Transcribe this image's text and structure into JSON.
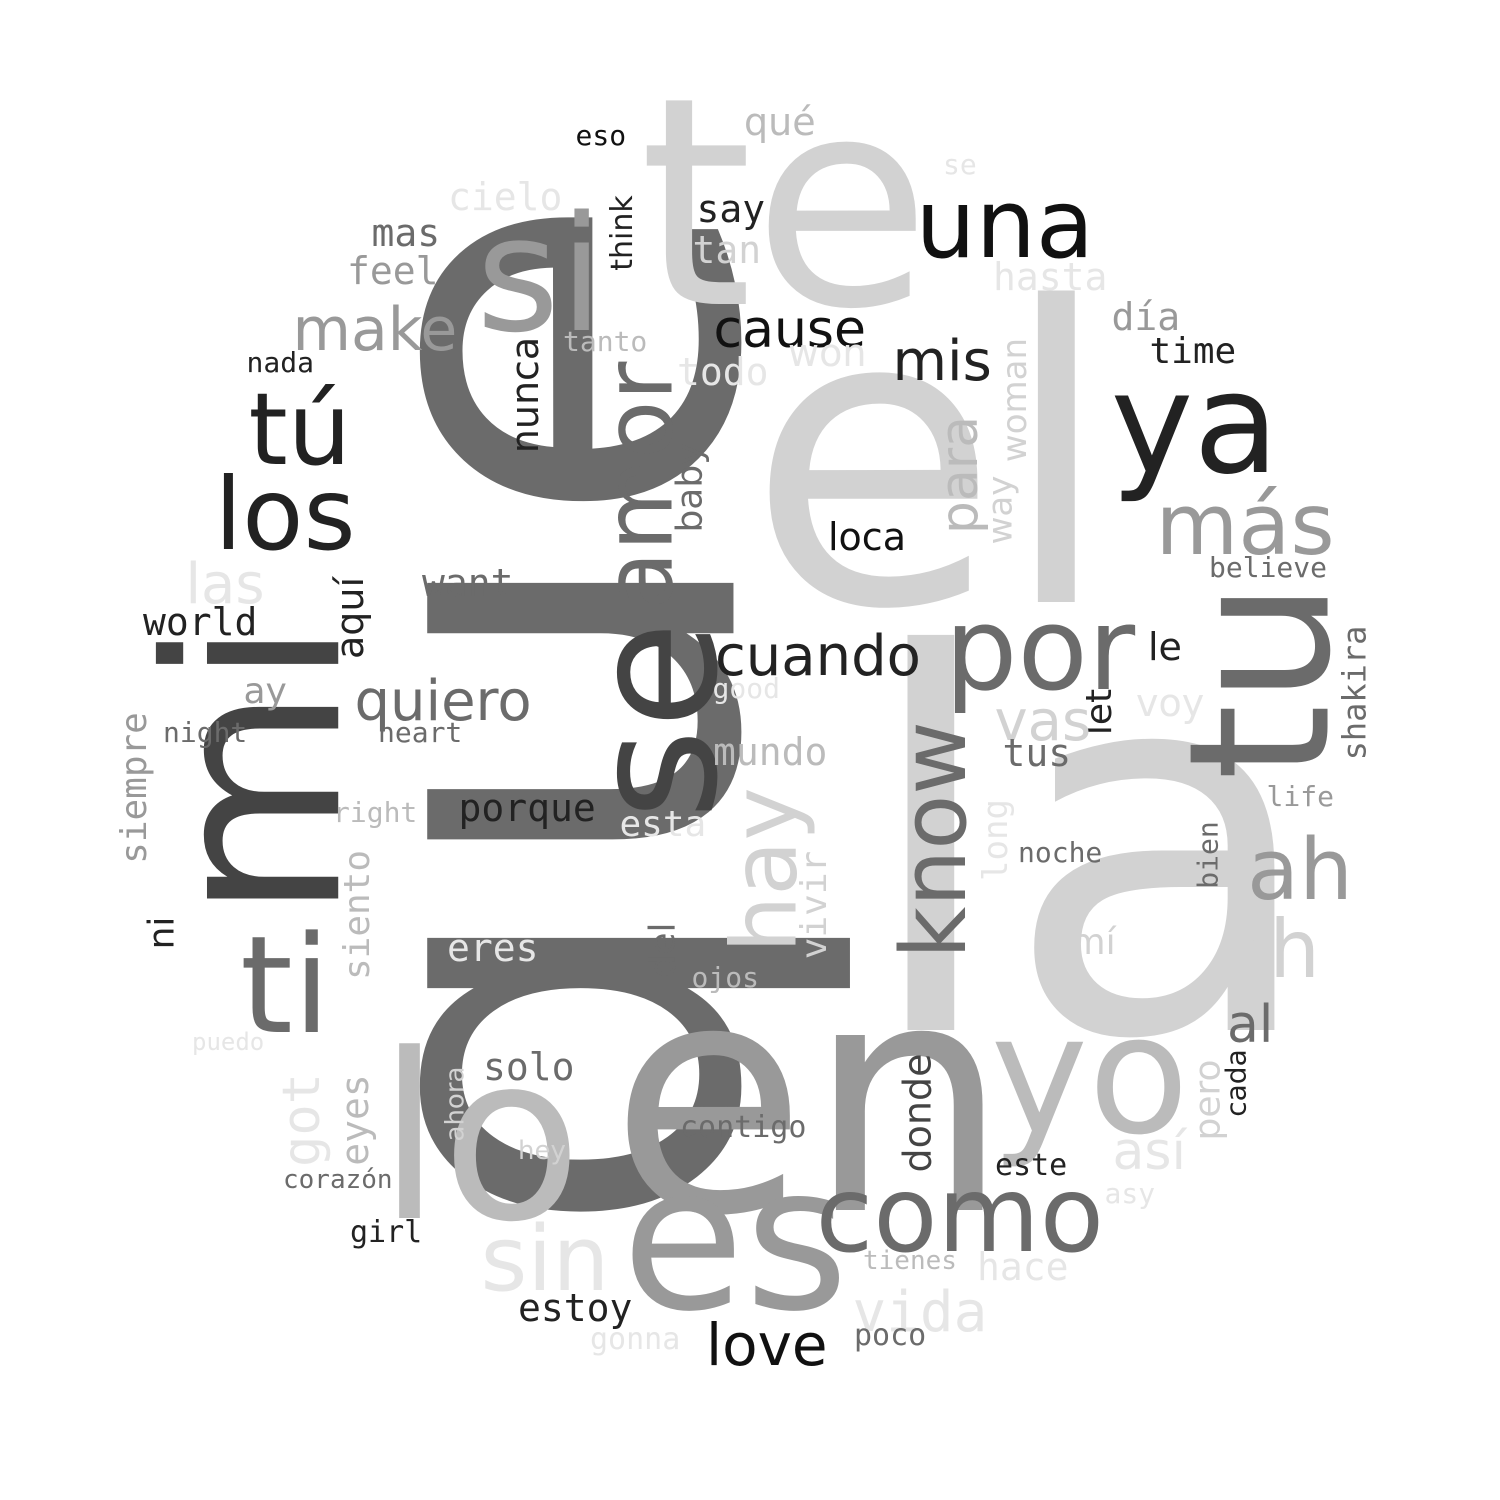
{
  "colors": {
    "background": "#ffffff",
    "black": "#111111",
    "dark": "#222222",
    "darkgray": "#444444",
    "gray": "#6b6b6b",
    "midgray": "#999999",
    "silver": "#bbbbbb",
    "light": "#d2d2d2",
    "pale": "#e6e6e6"
  },
  "words": [
    "la",
    "el",
    "que",
    "en",
    "te",
    "mi",
    "lo",
    "es",
    "tu",
    "se",
    "si",
    "ya",
    "una",
    "por",
    "los",
    "tú",
    "ti",
    "yo",
    "como",
    "sin",
    "amor",
    "know",
    "hay",
    "más",
    "ah",
    "eh",
    "make",
    "cuando",
    "quiero",
    "nunca",
    "para",
    "mis",
    "cause",
    "loca",
    "love",
    "vida",
    "las",
    "aquí",
    "world",
    "ay",
    "night",
    "siempre",
    "heart",
    "right",
    "ni",
    "porque",
    "want",
    "baby",
    "way",
    "woman",
    "long",
    "vivir",
    "mundo",
    "esta",
    "siento",
    "eres",
    "del",
    "ojos",
    "noche",
    "mí",
    "al",
    "bien",
    "life",
    "shakira",
    "let",
    "voy",
    "vas",
    "tus",
    "le",
    "believe",
    "time",
    "día",
    "hasta",
    "won",
    "todo",
    "tanto",
    "nada",
    "mas",
    "feel",
    "tan",
    "say",
    "think",
    "cielo",
    "eso",
    "qué",
    "se",
    "good",
    "got",
    "eyes",
    "ahora",
    "hey",
    "corazón",
    "girl",
    "solo",
    "contigo",
    "donde",
    "este",
    "así",
    "pero",
    "cada",
    "asy",
    "hace",
    "tienes",
    "poco",
    "estoy",
    "gonna",
    "puedo"
  ]
}
